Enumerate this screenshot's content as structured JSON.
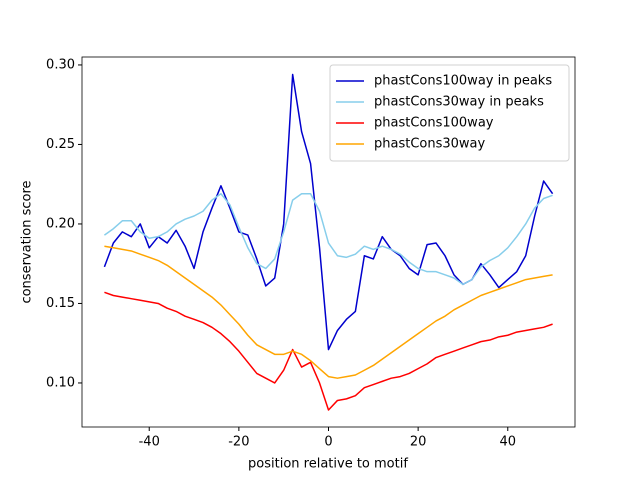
{
  "chart_data": {
    "type": "line",
    "xlabel": "position relative to motif",
    "ylabel": "conservation score",
    "x": [
      -50,
      -48,
      -46,
      -44,
      -42,
      -40,
      -38,
      -36,
      -34,
      -32,
      -30,
      -28,
      -26,
      -24,
      -22,
      -20,
      -18,
      -16,
      -14,
      -12,
      -10,
      -8,
      -6,
      -4,
      -2,
      0,
      2,
      4,
      6,
      8,
      10,
      12,
      14,
      16,
      18,
      20,
      22,
      24,
      26,
      28,
      30,
      32,
      34,
      36,
      38,
      40,
      42,
      44,
      46,
      48,
      50
    ],
    "series": [
      {
        "name": "phastCons100way in peaks",
        "color": "#0000cd",
        "values": [
          0.173,
          0.188,
          0.195,
          0.192,
          0.2,
          0.185,
          0.192,
          0.188,
          0.196,
          0.186,
          0.172,
          0.195,
          0.21,
          0.224,
          0.21,
          0.195,
          0.193,
          0.178,
          0.161,
          0.166,
          0.2,
          0.294,
          0.258,
          0.238,
          0.185,
          0.121,
          0.133,
          0.14,
          0.145,
          0.18,
          0.178,
          0.192,
          0.184,
          0.18,
          0.172,
          0.168,
          0.187,
          0.188,
          0.18,
          0.168,
          0.162,
          0.165,
          0.175,
          0.168,
          0.16,
          0.165,
          0.17,
          0.18,
          0.205,
          0.227,
          0.219
        ]
      },
      {
        "name": "phastCons30way in peaks",
        "color": "#87ceeb",
        "values": [
          0.193,
          0.197,
          0.202,
          0.202,
          0.195,
          0.191,
          0.192,
          0.195,
          0.2,
          0.203,
          0.205,
          0.208,
          0.215,
          0.219,
          0.212,
          0.198,
          0.185,
          0.175,
          0.172,
          0.178,
          0.195,
          0.215,
          0.219,
          0.219,
          0.208,
          0.188,
          0.18,
          0.179,
          0.181,
          0.186,
          0.184,
          0.186,
          0.184,
          0.181,
          0.176,
          0.172,
          0.17,
          0.17,
          0.168,
          0.166,
          0.162,
          0.165,
          0.173,
          0.177,
          0.18,
          0.185,
          0.192,
          0.2,
          0.21,
          0.216,
          0.218
        ]
      },
      {
        "name": "phastCons100way",
        "color": "#ff0000",
        "values": [
          0.157,
          0.155,
          0.154,
          0.153,
          0.152,
          0.151,
          0.15,
          0.147,
          0.145,
          0.142,
          0.14,
          0.138,
          0.135,
          0.131,
          0.126,
          0.12,
          0.113,
          0.106,
          0.103,
          0.1,
          0.108,
          0.121,
          0.11,
          0.113,
          0.1,
          0.083,
          0.089,
          0.09,
          0.092,
          0.097,
          0.099,
          0.101,
          0.103,
          0.104,
          0.106,
          0.109,
          0.112,
          0.116,
          0.118,
          0.12,
          0.122,
          0.124,
          0.126,
          0.127,
          0.129,
          0.13,
          0.132,
          0.133,
          0.134,
          0.135,
          0.137
        ]
      },
      {
        "name": "phastCons30way",
        "color": "#ffa500",
        "values": [
          0.186,
          0.185,
          0.184,
          0.183,
          0.181,
          0.179,
          0.177,
          0.174,
          0.17,
          0.166,
          0.162,
          0.158,
          0.154,
          0.149,
          0.143,
          0.137,
          0.13,
          0.124,
          0.121,
          0.118,
          0.118,
          0.12,
          0.118,
          0.114,
          0.109,
          0.104,
          0.103,
          0.104,
          0.105,
          0.108,
          0.111,
          0.115,
          0.119,
          0.123,
          0.127,
          0.131,
          0.135,
          0.139,
          0.142,
          0.146,
          0.149,
          0.152,
          0.155,
          0.157,
          0.159,
          0.161,
          0.163,
          0.165,
          0.166,
          0.167,
          0.168
        ]
      }
    ],
    "xlim": [
      -55,
      55
    ],
    "xticks": [
      -40,
      -20,
      0,
      20,
      40
    ],
    "ylim": [
      0.0723,
      0.305
    ],
    "yticks": [
      {
        "value": 0.1,
        "label": "0.10"
      },
      0.15,
      {
        "value": 0.2,
        "label": "0.20"
      },
      0.25,
      {
        "value": 0.3,
        "label": "0.30"
      }
    ],
    "legend": "upper right",
    "grid": false
  }
}
